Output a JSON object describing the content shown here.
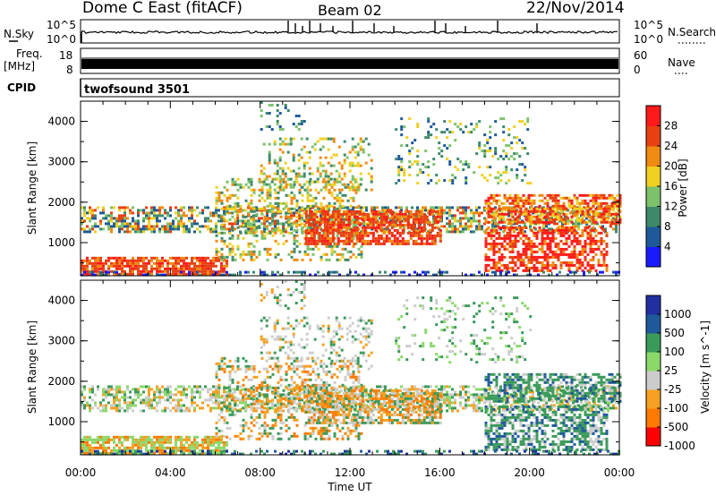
{
  "header": {
    "station": "Dome C East (fitACF)",
    "beam": "Beam 02",
    "date": "22/Nov/2014"
  },
  "noise_panel": {
    "left_label": "N.Sky",
    "right_label": "N.Search",
    "ticks_left": [
      "10^5",
      "10^0"
    ],
    "ticks_right": [
      "10^5",
      "10^0"
    ]
  },
  "freq_panel": {
    "left_label_line1": "Freq.",
    "left_label_line2": "[MHz]",
    "left_ticks": [
      "18",
      "8"
    ],
    "right_label": "Nave",
    "right_ticks": [
      "60",
      "0"
    ]
  },
  "cpid_panel": {
    "label": "CPID",
    "value": "twofsound 3501"
  },
  "colors": {
    "power": [
      "#1a1aff",
      "#1e5a9a",
      "#3c8a6a",
      "#7cc26a",
      "#f0d020",
      "#f08a10",
      "#e84010",
      "#ff1a1a"
    ],
    "velocity": [
      "#ff0000",
      "#ff7a00",
      "#f5a020",
      "#cccccc",
      "#8ad86a",
      "#3a9a5a",
      "#1e5a9a",
      "#2030a0"
    ]
  },
  "chart_data": [
    {
      "type": "heatmap",
      "name": "power",
      "title": "",
      "xlabel": "Time UT",
      "ylabel": "Slant Range [km]",
      "xlim": [
        "00:00",
        "24:00"
      ],
      "ylim": [
        180,
        4500
      ],
      "x_ticks": [
        "00:00",
        "04:00",
        "08:00",
        "12:00",
        "16:00",
        "20:00",
        "00:00"
      ],
      "y_ticks": [
        1000,
        2000,
        3000,
        4000
      ],
      "colorbar": {
        "label": "Power [dB]",
        "ticks": [
          "4",
          "8",
          "12",
          "16",
          "20",
          "24",
          "28"
        ],
        "range": [
          0,
          32
        ]
      }
    },
    {
      "type": "heatmap",
      "name": "velocity",
      "title": "",
      "xlabel": "Time UT",
      "ylabel": "Slant Range [km]",
      "xlim": [
        "00:00",
        "24:00"
      ],
      "ylim": [
        180,
        4500
      ],
      "x_ticks": [
        "00:00",
        "04:00",
        "08:00",
        "12:00",
        "16:00",
        "20:00",
        "00:00"
      ],
      "y_ticks": [
        1000,
        2000,
        3000,
        4000
      ],
      "colorbar": {
        "label": "Velocity [m s^-1]",
        "ticks": [
          "1000",
          "500",
          "100",
          "25",
          "-25",
          "-100",
          "-500",
          "-1000"
        ]
      }
    }
  ]
}
